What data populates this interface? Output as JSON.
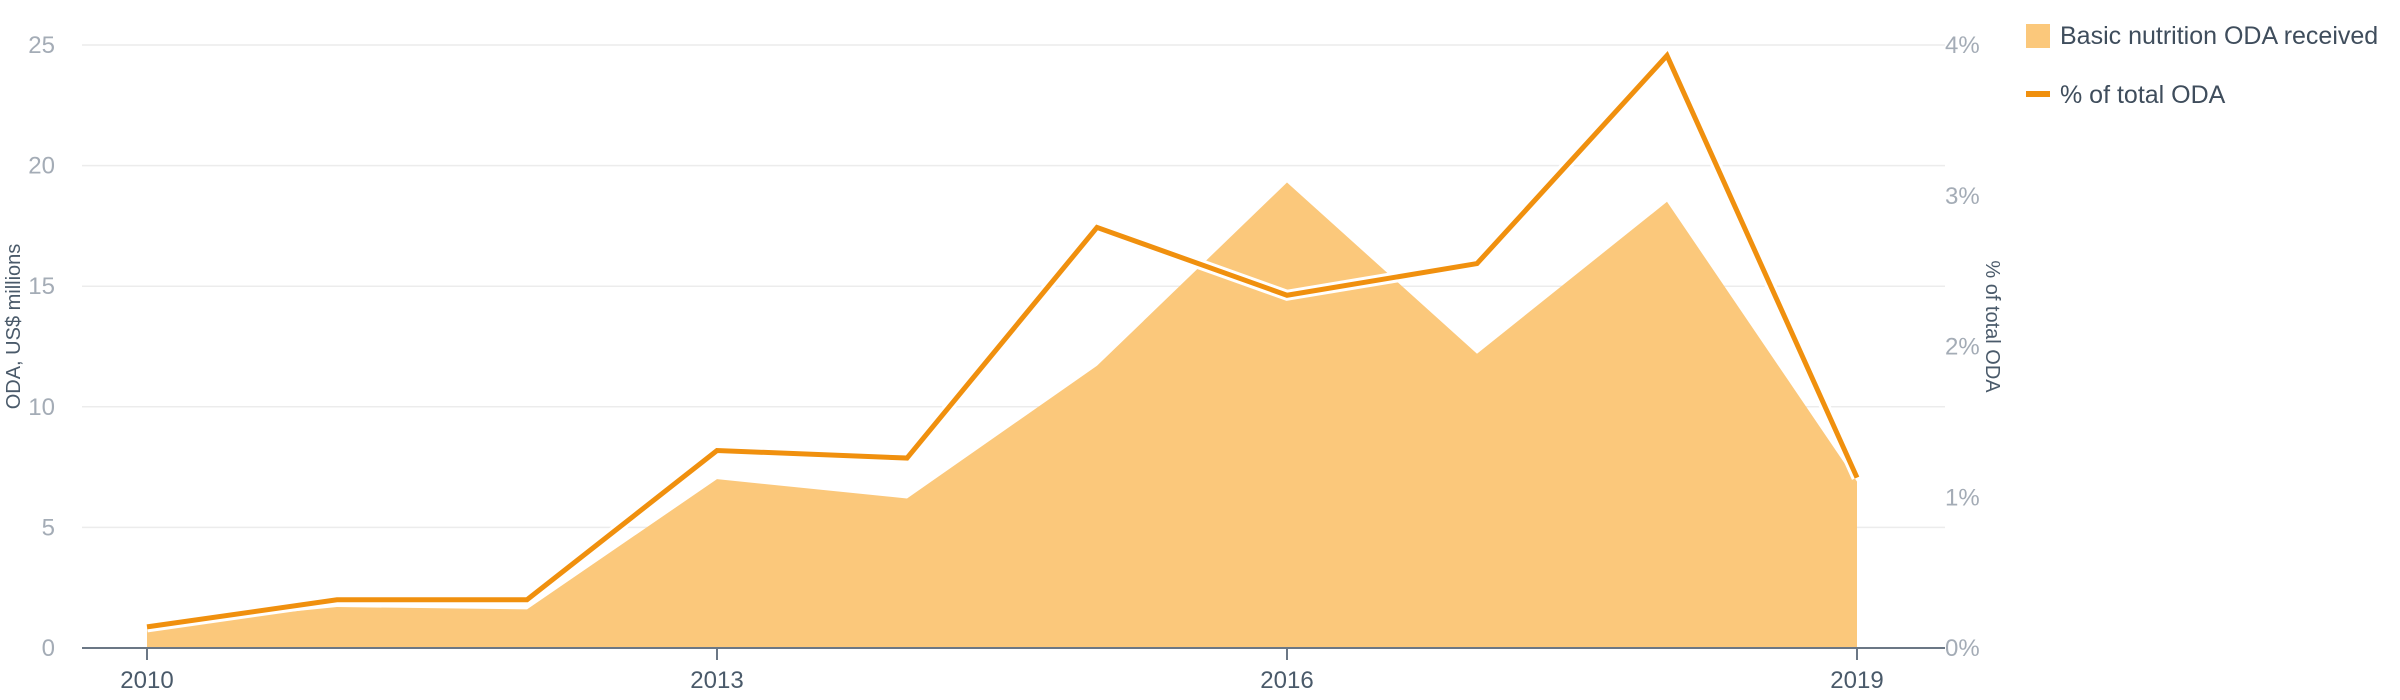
{
  "chart_data": {
    "type": "area+line",
    "x": [
      2010,
      2011,
      2012,
      2013,
      2014,
      2015,
      2016,
      2017,
      2018,
      2019
    ],
    "x_ticks": [
      "2010",
      "2013",
      "2016",
      "2019"
    ],
    "series": [
      {
        "name": "Basic nutrition ODA received",
        "kind": "area",
        "axis": "left",
        "color": "#fbc87b",
        "values": [
          0.9,
          1.7,
          1.6,
          7.0,
          6.2,
          11.7,
          19.3,
          12.2,
          18.5,
          6.9
        ]
      },
      {
        "name": "% of total ODA",
        "kind": "line",
        "axis": "right",
        "color": "#f0900e",
        "values": [
          0.14,
          0.32,
          0.32,
          1.31,
          1.26,
          2.79,
          2.34,
          2.55,
          3.93,
          1.13
        ]
      }
    ],
    "y_left": {
      "label": "ODA, US$ millions",
      "ylim": [
        0,
        25
      ],
      "ticks": [
        "0",
        "5",
        "10",
        "15",
        "20",
        "25"
      ]
    },
    "y_right": {
      "label": "% of total ODA",
      "ylim": [
        0,
        4
      ],
      "ticks": [
        "0%",
        "1%",
        "2%",
        "3%",
        "4%"
      ]
    },
    "grid": true,
    "legend_position": "top-right"
  }
}
